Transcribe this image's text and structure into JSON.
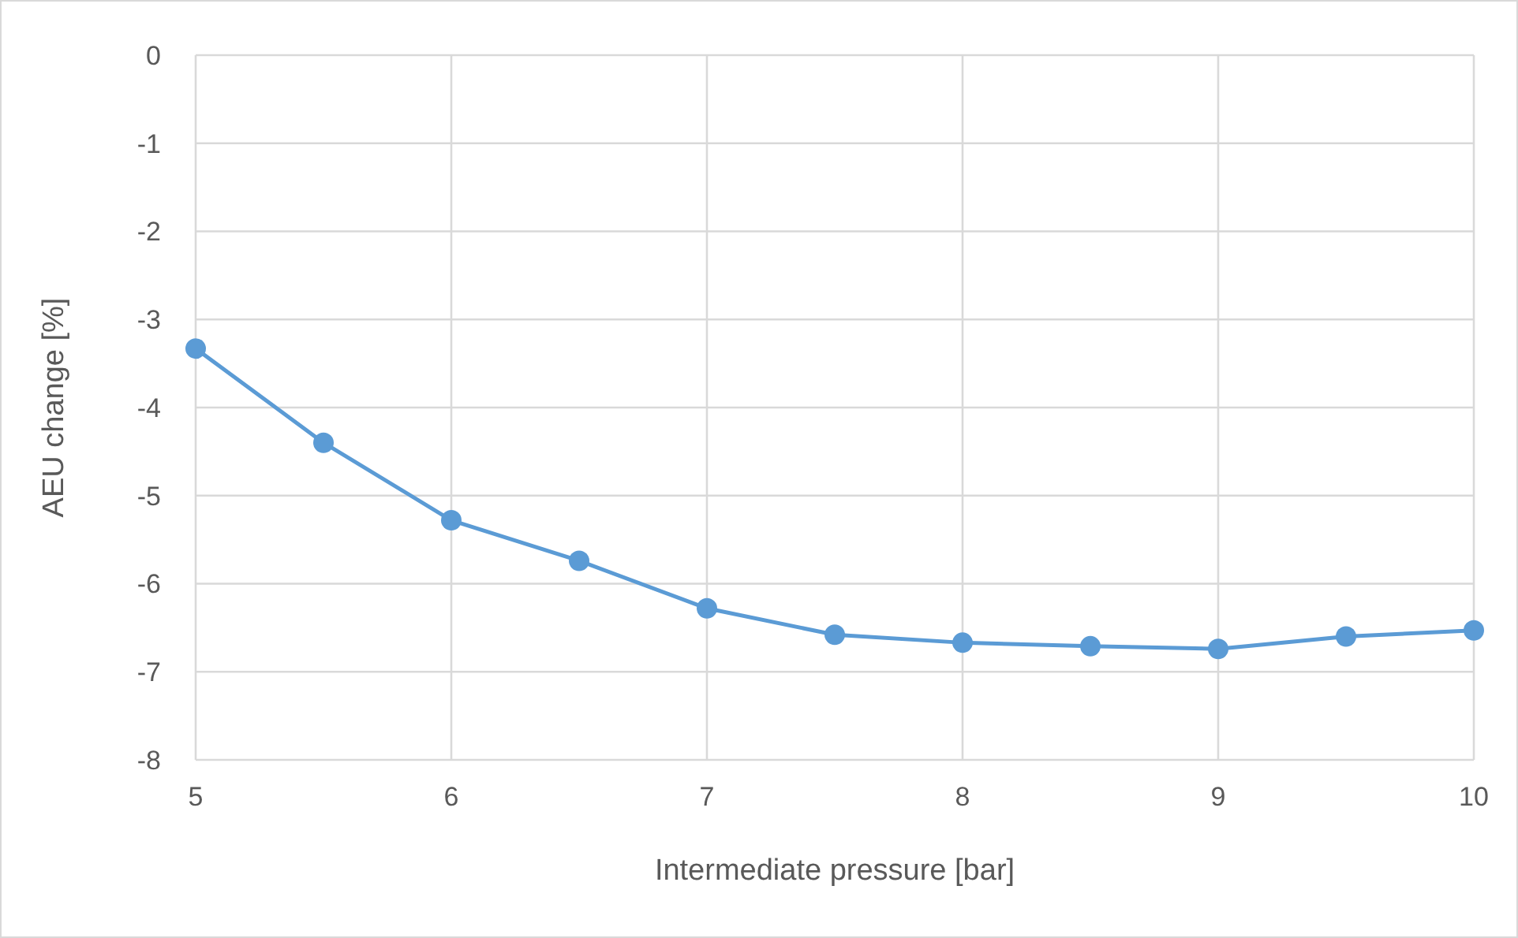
{
  "chart_data": {
    "type": "line",
    "xlabel": "Intermediate pressure [bar]",
    "ylabel": "AEU change [%]",
    "x": [
      5,
      5.5,
      6,
      6.5,
      7,
      7.5,
      8,
      8.5,
      9,
      9.5,
      10
    ],
    "series": [
      {
        "color": "#5b9bd5",
        "values": [
          -3.33,
          -4.4,
          -5.28,
          -5.74,
          -6.28,
          -6.58,
          -6.67,
          -6.71,
          -6.74,
          -6.6,
          -6.53
        ]
      }
    ],
    "xlim": [
      5,
      10
    ],
    "xticks": [
      5,
      6,
      7,
      8,
      9,
      10
    ],
    "ylim": [
      -8,
      0
    ],
    "yticks": [
      -8,
      -7,
      -6,
      -5,
      -4,
      -3,
      -2,
      -1,
      0
    ],
    "grid": true,
    "marker": "circle",
    "line_style": "solid"
  }
}
